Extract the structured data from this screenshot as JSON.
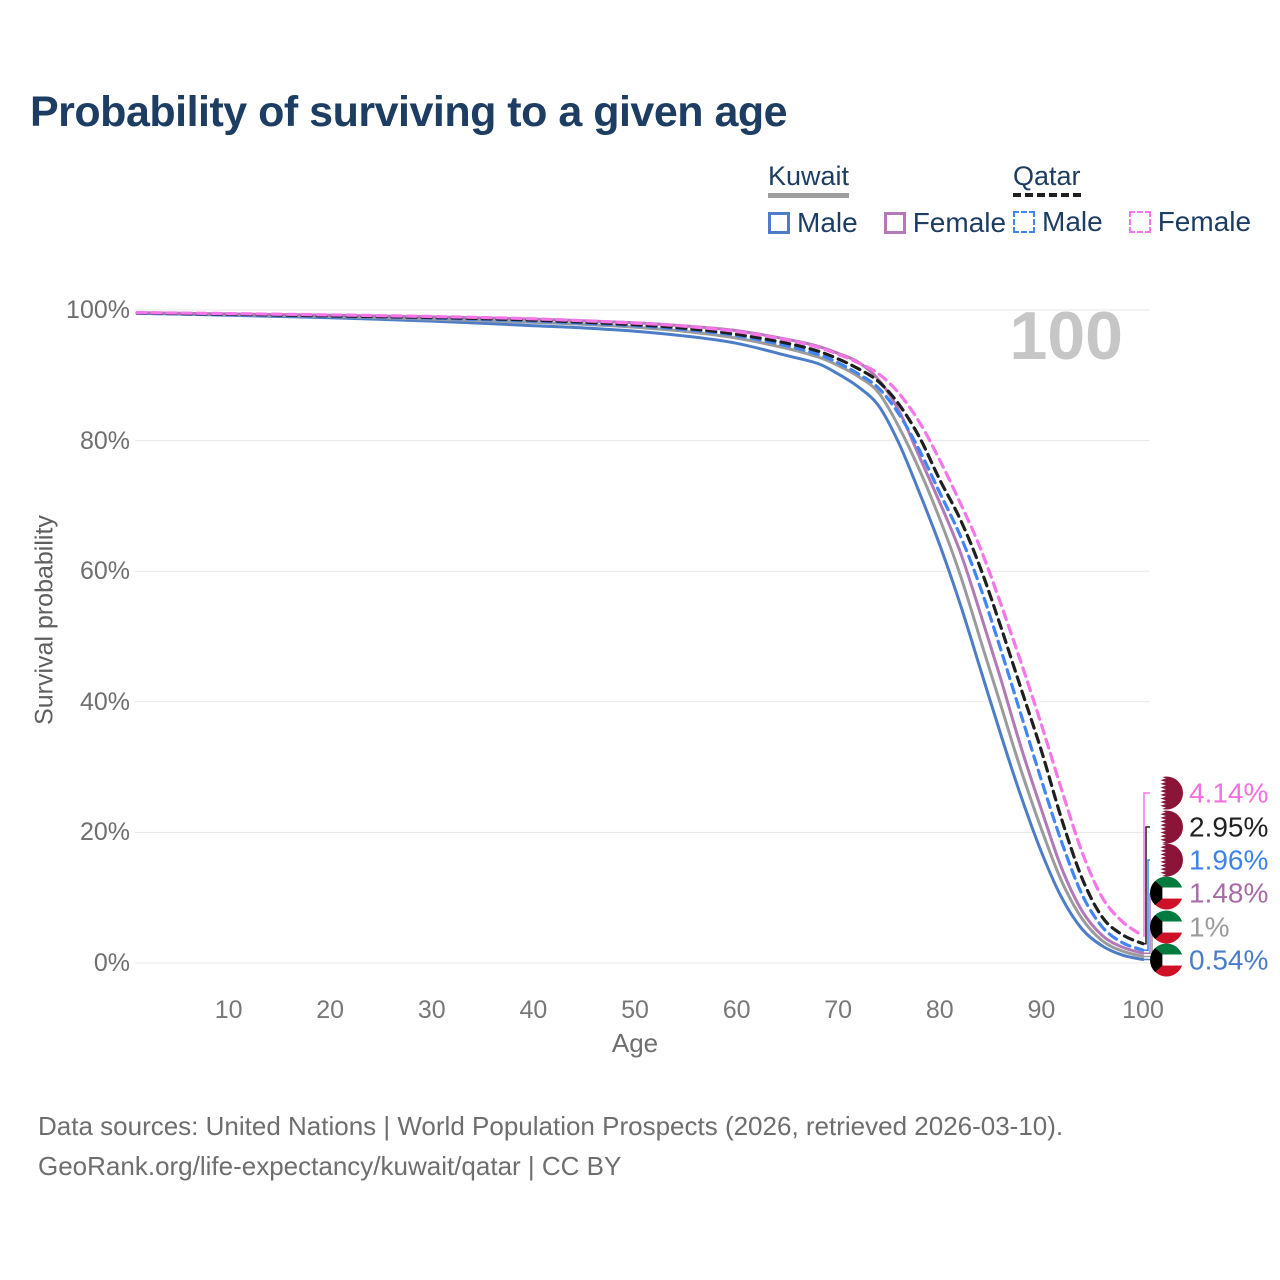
{
  "header": {
    "title": "Probability of surviving to a given age"
  },
  "legend": {
    "groups": [
      {
        "name": "Kuwait",
        "line_style": "solid",
        "underline_color": "#9e9e9e",
        "items": [
          {
            "label": "Male",
            "series": "kuwait-male"
          },
          {
            "label": "Female",
            "series": "kuwait-female"
          }
        ]
      },
      {
        "name": "Qatar",
        "line_style": "dashed",
        "underline_color": "#1f1f1f",
        "items": [
          {
            "label": "Male",
            "series": "qatar-male"
          },
          {
            "label": "Female",
            "series": "qatar-female"
          }
        ]
      }
    ]
  },
  "chart_data": {
    "type": "line",
    "title": "Probability of surviving to a given age",
    "xlabel": "Age",
    "ylabel": "Survival probability",
    "xlim": [
      0,
      100
    ],
    "ylim": [
      0,
      100
    ],
    "grid": "horizontal",
    "legend_position": "top-right",
    "age_annotation": "100",
    "x_ticks": [
      10,
      20,
      30,
      40,
      50,
      60,
      70,
      80,
      90,
      100
    ],
    "y_ticks": [
      {
        "value": 0,
        "label": "0%"
      },
      {
        "value": 20,
        "label": "20%"
      },
      {
        "value": 40,
        "label": "40%"
      },
      {
        "value": 60,
        "label": "60%"
      },
      {
        "value": 80,
        "label": "80%"
      },
      {
        "value": 100,
        "label": "100%"
      }
    ],
    "series": [
      {
        "key": "kuwait-male",
        "name": "Kuwait Male",
        "country": "Kuwait",
        "sex": "Male",
        "line_style": "solid",
        "color": "#4d7dc6",
        "label_color": "#4a7dc9",
        "end_label": "0.54%",
        "end_value": 0.54,
        "points": [
          [
            1,
            99.5
          ],
          [
            10,
            99.2
          ],
          [
            20,
            98.8
          ],
          [
            30,
            98.3
          ],
          [
            40,
            97.6
          ],
          [
            45,
            97.25
          ],
          [
            50,
            96.75
          ],
          [
            55,
            96.0
          ],
          [
            60,
            94.9
          ],
          [
            65,
            93.0
          ],
          [
            68,
            91.8
          ],
          [
            70,
            90.2
          ],
          [
            72,
            88.2
          ],
          [
            74,
            85.3
          ],
          [
            76,
            79.5
          ],
          [
            78,
            72.0
          ],
          [
            80,
            64.0
          ],
          [
            82,
            55.0
          ],
          [
            84,
            45.0
          ],
          [
            86,
            35.0
          ],
          [
            88,
            25.5
          ],
          [
            90,
            17.0
          ],
          [
            92,
            10.0
          ],
          [
            94,
            5.2
          ],
          [
            96,
            2.6
          ],
          [
            98,
            1.2
          ],
          [
            100,
            0.54
          ]
        ]
      },
      {
        "key": "kuwait-both",
        "name": "Kuwait",
        "country": "Kuwait",
        "sex": "Both",
        "line_style": "solid",
        "color": "#9b9b9b",
        "label_color": "#9b9b9b",
        "end_label": "1%",
        "end_value": 1.0,
        "points": [
          [
            1,
            99.55
          ],
          [
            10,
            99.3
          ],
          [
            20,
            99.0
          ],
          [
            30,
            98.6
          ],
          [
            40,
            98.1
          ],
          [
            45,
            97.8
          ],
          [
            50,
            97.35
          ],
          [
            55,
            96.7
          ],
          [
            60,
            95.7
          ],
          [
            65,
            94.1
          ],
          [
            68,
            92.8
          ],
          [
            70,
            91.5
          ],
          [
            72,
            89.8
          ],
          [
            74,
            87.3
          ],
          [
            76,
            82.0
          ],
          [
            78,
            75.5
          ],
          [
            80,
            68.0
          ],
          [
            82,
            59.5
          ],
          [
            84,
            49.5
          ],
          [
            86,
            39.5
          ],
          [
            88,
            29.5
          ],
          [
            90,
            20.5
          ],
          [
            92,
            12.5
          ],
          [
            94,
            6.8
          ],
          [
            96,
            3.4
          ],
          [
            98,
            1.8
          ],
          [
            100,
            1.0
          ]
        ]
      },
      {
        "key": "kuwait-female",
        "name": "Kuwait Female",
        "country": "Kuwait",
        "sex": "Female",
        "line_style": "solid",
        "color": "#b279b6",
        "label_color": "#a86ba6",
        "end_label": "1.48%",
        "end_value": 1.48,
        "points": [
          [
            1,
            99.6
          ],
          [
            10,
            99.4
          ],
          [
            20,
            99.2
          ],
          [
            30,
            98.95
          ],
          [
            40,
            98.6
          ],
          [
            50,
            98.05
          ],
          [
            55,
            97.55
          ],
          [
            60,
            96.85
          ],
          [
            65,
            95.5
          ],
          [
            68,
            94.45
          ],
          [
            70,
            93.35
          ],
          [
            72,
            92.0
          ],
          [
            74,
            89.3
          ],
          [
            76,
            84.5
          ],
          [
            78,
            77.5
          ],
          [
            80,
            70.5
          ],
          [
            82,
            63.0
          ],
          [
            84,
            53.5
          ],
          [
            86,
            43.5
          ],
          [
            88,
            33.0
          ],
          [
            90,
            23.5
          ],
          [
            92,
            14.5
          ],
          [
            94,
            8.0
          ],
          [
            96,
            4.2
          ],
          [
            98,
            2.4
          ],
          [
            100,
            1.48
          ]
        ]
      },
      {
        "key": "qatar-male",
        "name": "Qatar Male",
        "country": "Qatar",
        "sex": "Male",
        "line_style": "dashed",
        "color": "#4285f4",
        "label_color": "#3c82f0",
        "end_label": "1.96%",
        "end_value": 1.96,
        "points": [
          [
            1,
            99.5
          ],
          [
            10,
            99.3
          ],
          [
            20,
            99.05
          ],
          [
            30,
            98.75
          ],
          [
            40,
            98.3
          ],
          [
            50,
            97.6
          ],
          [
            55,
            97.0
          ],
          [
            60,
            96.1
          ],
          [
            65,
            94.5
          ],
          [
            68,
            93.2
          ],
          [
            70,
            91.9
          ],
          [
            72,
            90.2
          ],
          [
            74,
            88.0
          ],
          [
            76,
            84.0
          ],
          [
            78,
            78.5
          ],
          [
            80,
            72.0
          ],
          [
            82,
            65.5
          ],
          [
            84,
            57.5
          ],
          [
            86,
            48.0
          ],
          [
            88,
            38.0
          ],
          [
            90,
            28.0
          ],
          [
            92,
            18.5
          ],
          [
            94,
            10.5
          ],
          [
            96,
            5.5
          ],
          [
            98,
            3.1
          ],
          [
            100,
            1.96
          ]
        ]
      },
      {
        "key": "qatar-both",
        "name": "Qatar",
        "country": "Qatar",
        "sex": "Both",
        "line_style": "dashed",
        "color": "#1f1f1f",
        "label_color": "#212121",
        "end_label": "2.95%",
        "end_value": 2.95,
        "points": [
          [
            1,
            99.55
          ],
          [
            10,
            99.35
          ],
          [
            20,
            99.1
          ],
          [
            30,
            98.85
          ],
          [
            40,
            98.45
          ],
          [
            50,
            97.75
          ],
          [
            55,
            97.2
          ],
          [
            60,
            96.3
          ],
          [
            65,
            94.9
          ],
          [
            68,
            93.7
          ],
          [
            70,
            92.5
          ],
          [
            72,
            91.0
          ],
          [
            74,
            89.0
          ],
          [
            76,
            85.5
          ],
          [
            78,
            80.5
          ],
          [
            80,
            74.0
          ],
          [
            82,
            68.0
          ],
          [
            84,
            60.5
          ],
          [
            86,
            51.5
          ],
          [
            88,
            42.0
          ],
          [
            90,
            32.5
          ],
          [
            92,
            22.0
          ],
          [
            94,
            13.0
          ],
          [
            96,
            7.0
          ],
          [
            98,
            4.3
          ],
          [
            100,
            2.95
          ]
        ]
      },
      {
        "key": "qatar-female",
        "name": "Qatar Female",
        "country": "Qatar",
        "sex": "Female",
        "line_style": "dashed",
        "color": "#f576e8",
        "label_color": "#f56fe2",
        "end_label": "4.14%",
        "end_value": 4.14,
        "points": [
          [
            1,
            99.6
          ],
          [
            10,
            99.45
          ],
          [
            20,
            99.25
          ],
          [
            30,
            99.0
          ],
          [
            40,
            98.65
          ],
          [
            50,
            98.0
          ],
          [
            55,
            97.5
          ],
          [
            60,
            96.7
          ],
          [
            65,
            95.4
          ],
          [
            68,
            94.3
          ],
          [
            70,
            93.2
          ],
          [
            72,
            91.9
          ],
          [
            74,
            90.2
          ],
          [
            76,
            87.2
          ],
          [
            78,
            82.8
          ],
          [
            80,
            77.0
          ],
          [
            82,
            70.5
          ],
          [
            84,
            63.5
          ],
          [
            86,
            55.0
          ],
          [
            88,
            46.0
          ],
          [
            90,
            36.5
          ],
          [
            92,
            26.5
          ],
          [
            94,
            17.0
          ],
          [
            96,
            10.0
          ],
          [
            98,
            6.3
          ],
          [
            100,
            4.14
          ]
        ]
      }
    ],
    "flag_colors": {
      "qatar_maroon": "#8a1538",
      "kuwait_green": "#007a3d",
      "kuwait_red": "#ce1126",
      "kuwait_black": "#000000",
      "white": "#ffffff"
    }
  },
  "footer": {
    "line1": "Data sources: United Nations | World Population Prospects (2026, retrieved 2026-03-10).",
    "line2": "GeoRank.org/life-expectancy/kuwait/qatar | CC BY"
  }
}
